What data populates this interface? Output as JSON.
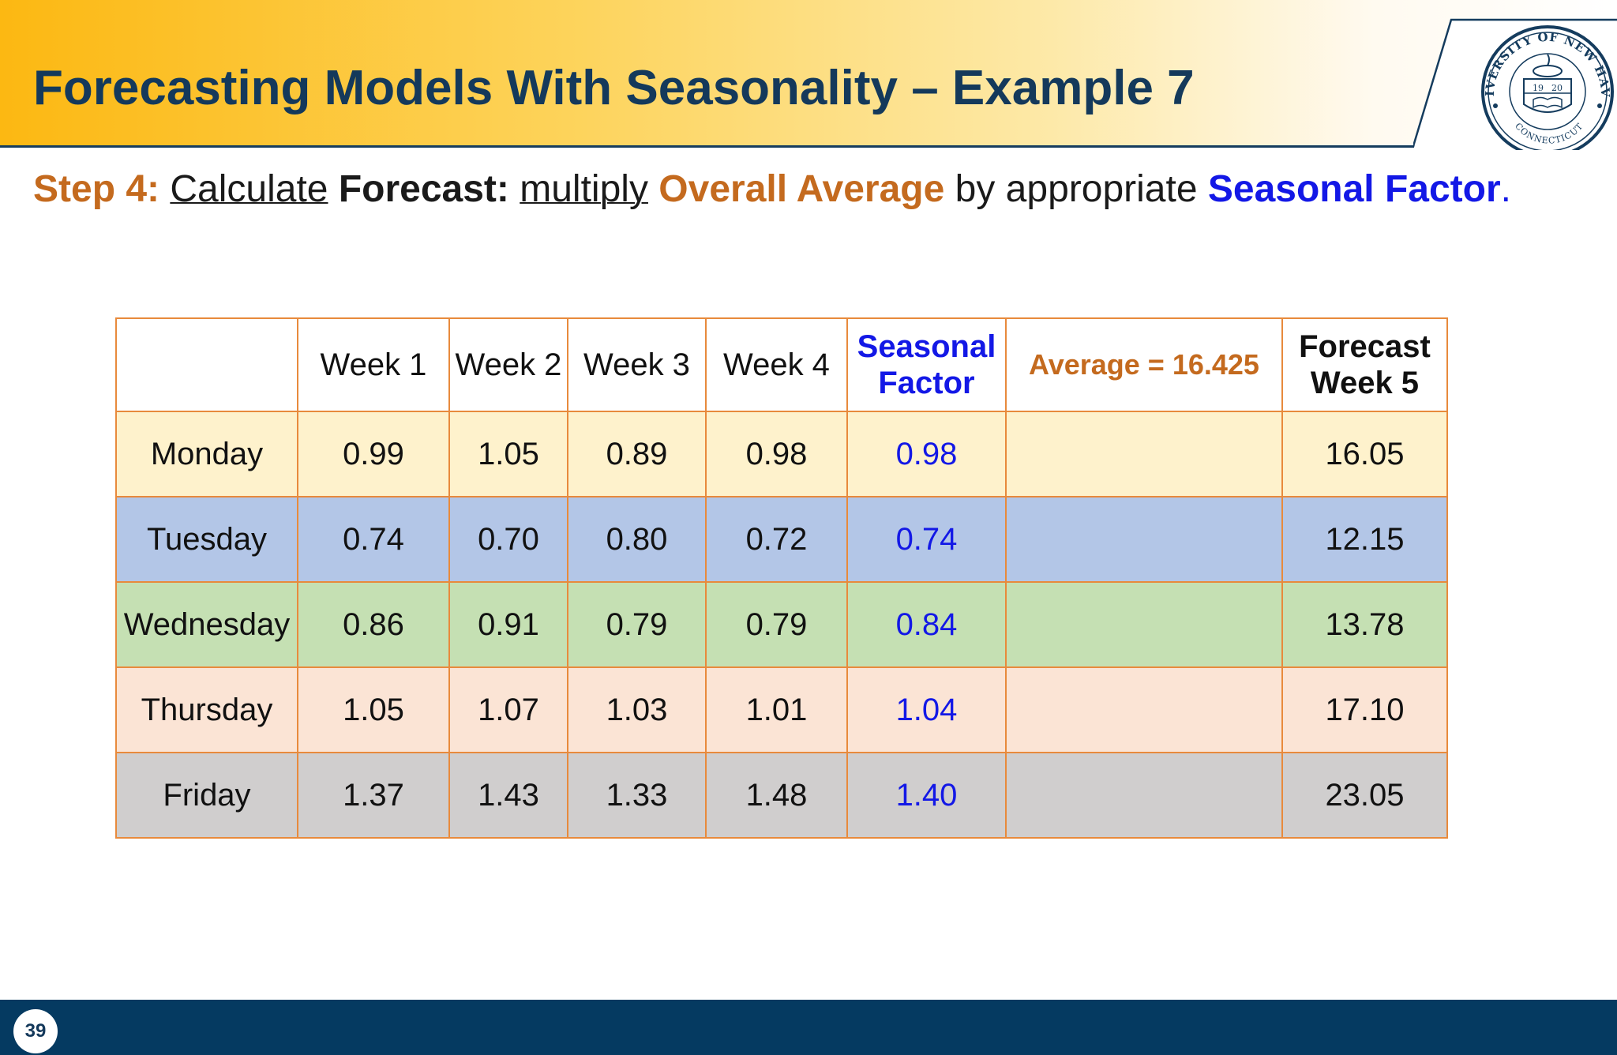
{
  "slide": {
    "title": "Forecasting Models With Seasonality – Example 7",
    "page_number": "39"
  },
  "logo": {
    "text_top": "UNIVERSITY OF NEW HAVEN",
    "text_bottom": "CONNECTICUT",
    "year_left": "19",
    "year_right": "20"
  },
  "subtitle": {
    "step": "Step 4:",
    "calculate": "Calculate",
    "forecast": "Forecast:",
    "multiply": "multiply",
    "overall_average": "Overall Average",
    "by_appropriate": "by appropriate",
    "seasonal_factor": "Seasonal Factor",
    "period": "."
  },
  "table": {
    "headers": {
      "blank": "",
      "week1": "Week 1",
      "week2": "Week 2",
      "week3": "Week 3",
      "week4": "Week 4",
      "seasonal_factor_line1": "Seasonal",
      "seasonal_factor_line2": "Factor",
      "average": "Average = 16.425",
      "forecast_line1": "Forecast",
      "forecast_line2": "Week 5"
    },
    "rows": [
      {
        "day": "Monday",
        "w1": "0.99",
        "w2": "1.05",
        "w3": "0.89",
        "w4": "0.98",
        "sf": "0.98",
        "avg": "",
        "forecast": "16.05"
      },
      {
        "day": "Tuesday",
        "w1": "0.74",
        "w2": "0.70",
        "w3": "0.80",
        "w4": "0.72",
        "sf": "0.74",
        "avg": "",
        "forecast": "12.15"
      },
      {
        "day": "Wednesday",
        "w1": "0.86",
        "w2": "0.91",
        "w3": "0.79",
        "w4": "0.79",
        "sf": "0.84",
        "avg": "",
        "forecast": "13.78"
      },
      {
        "day": "Thursday",
        "w1": "1.05",
        "w2": "1.07",
        "w3": "1.03",
        "w4": "1.01",
        "sf": "1.04",
        "avg": "",
        "forecast": "17.10"
      },
      {
        "day": "Friday",
        "w1": "1.37",
        "w2": "1.43",
        "w3": "1.33",
        "w4": "1.48",
        "sf": "1.40",
        "avg": "",
        "forecast": "23.05"
      }
    ]
  },
  "colors": {
    "title": "#14395b",
    "accent_orange": "#c46a1e",
    "accent_blue": "#1318e6",
    "table_border": "#e88a3c",
    "footer": "#053a61",
    "row_monday": "#fef2cc",
    "row_tuesday": "#b3c6e7",
    "row_wednesday": "#c5e0b3",
    "row_thursday": "#fbe4d5",
    "row_friday": "#d0cece"
  },
  "icons": {
    "logo": "university-seal-icon"
  }
}
